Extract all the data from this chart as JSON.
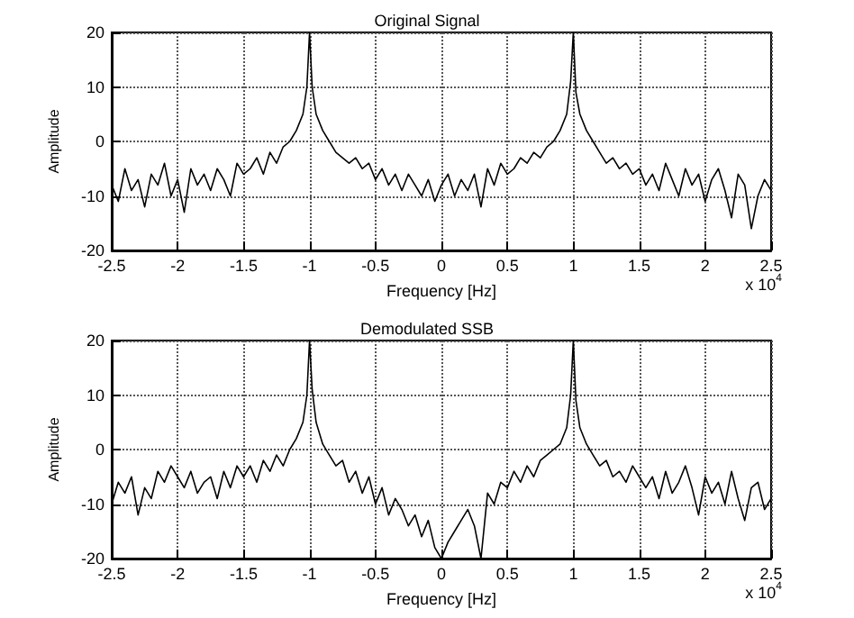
{
  "chart_data": [
    {
      "type": "line",
      "title": "Original Signal",
      "xlabel": "Frequency [Hz]",
      "ylabel": "Amplitude",
      "annotations": [
        "x 10$^{4}$"
      ],
      "xlim": [
        -2.5,
        2.5
      ],
      "xticks": [
        -2.5,
        -2,
        -1.5,
        -1,
        -0.5,
        0,
        0.5,
        1,
        1.5,
        2,
        2.5
      ],
      "ylim": [
        -20,
        20
      ],
      "yticks": [
        -20,
        -10,
        0,
        10,
        20
      ],
      "grid": true,
      "marker": "none",
      "line_style": "solid",
      "x": [
        -2.5,
        -2.45,
        -2.4,
        -2.35,
        -2.3,
        -2.25,
        -2.2,
        -2.15,
        -2.1,
        -2.05,
        -2,
        -1.95,
        -1.9,
        -1.85,
        -1.8,
        -1.75,
        -1.7,
        -1.65,
        -1.6,
        -1.55,
        -1.5,
        -1.45,
        -1.4,
        -1.35,
        -1.3,
        -1.25,
        -1.2,
        -1.15,
        -1.1,
        -1.05,
        -1.02,
        -1,
        -0.98,
        -0.95,
        -0.9,
        -0.85,
        -0.8,
        -0.75,
        -0.7,
        -0.65,
        -0.6,
        -0.55,
        -0.5,
        -0.45,
        -0.4,
        -0.35,
        -0.3,
        -0.25,
        -0.2,
        -0.15,
        -0.1,
        -0.05,
        0,
        0.05,
        0.1,
        0.15,
        0.2,
        0.25,
        0.3,
        0.35,
        0.4,
        0.45,
        0.5,
        0.55,
        0.6,
        0.65,
        0.7,
        0.75,
        0.8,
        0.85,
        0.9,
        0.95,
        0.98,
        1,
        1.02,
        1.05,
        1.1,
        1.15,
        1.2,
        1.25,
        1.3,
        1.35,
        1.4,
        1.45,
        1.5,
        1.55,
        1.6,
        1.65,
        1.7,
        1.75,
        1.8,
        1.85,
        1.9,
        1.95,
        2,
        2.05,
        2.1,
        2.15,
        2.2,
        2.25,
        2.3,
        2.35,
        2.4,
        2.45,
        2.5
      ],
      "series": [
        {
          "color": "#000000",
          "values": [
            -8,
            -11,
            -5,
            -9,
            -7,
            -12,
            -6,
            -8,
            -4,
            -10,
            -7,
            -13,
            -5,
            -8,
            -6,
            -9,
            -5,
            -7,
            -10,
            -4,
            -6,
            -5,
            -3,
            -6,
            -2,
            -4,
            -1,
            0,
            2,
            5,
            10,
            20,
            10,
            5,
            2,
            0,
            -2,
            -3,
            -4,
            -3,
            -5,
            -4,
            -7,
            -5,
            -8,
            -6,
            -9,
            -6,
            -8,
            -10,
            -7,
            -11,
            -8,
            -6,
            -10,
            -7,
            -9,
            -6,
            -12,
            -5,
            -8,
            -4,
            -6,
            -5,
            -3,
            -4,
            -2,
            -3,
            -1,
            0,
            2,
            5,
            11,
            20,
            9,
            5,
            2,
            0,
            -2,
            -4,
            -3,
            -5,
            -4,
            -6,
            -5,
            -8,
            -6,
            -9,
            -4,
            -7,
            -10,
            -5,
            -8,
            -6,
            -11,
            -7,
            -5,
            -9,
            -14,
            -6,
            -8,
            -16,
            -10,
            -7,
            -9
          ]
        }
      ]
    },
    {
      "type": "line",
      "title": "Demodulated SSB",
      "xlabel": "Frequency [Hz]",
      "ylabel": "Amplitude",
      "annotations": [
        "x 10$^{4}$"
      ],
      "xlim": [
        -2.5,
        2.5
      ],
      "xticks": [
        -2.5,
        -2,
        -1.5,
        -1,
        -0.5,
        0,
        0.5,
        1,
        1.5,
        2,
        2.5
      ],
      "ylim": [
        -20,
        20
      ],
      "yticks": [
        -20,
        -10,
        0,
        10,
        20
      ],
      "grid": true,
      "marker": "none",
      "line_style": "solid",
      "x": [
        -2.5,
        -2.45,
        -2.4,
        -2.35,
        -2.3,
        -2.25,
        -2.2,
        -2.15,
        -2.1,
        -2.05,
        -2,
        -1.95,
        -1.9,
        -1.85,
        -1.8,
        -1.75,
        -1.7,
        -1.65,
        -1.6,
        -1.55,
        -1.5,
        -1.45,
        -1.4,
        -1.35,
        -1.3,
        -1.25,
        -1.2,
        -1.15,
        -1.1,
        -1.05,
        -1.02,
        -1,
        -0.98,
        -0.95,
        -0.9,
        -0.85,
        -0.8,
        -0.75,
        -0.7,
        -0.65,
        -0.6,
        -0.55,
        -0.5,
        -0.45,
        -0.4,
        -0.35,
        -0.3,
        -0.25,
        -0.2,
        -0.15,
        -0.1,
        -0.05,
        0,
        0.05,
        0.1,
        0.15,
        0.2,
        0.25,
        0.3,
        0.35,
        0.4,
        0.45,
        0.5,
        0.55,
        0.6,
        0.65,
        0.7,
        0.75,
        0.8,
        0.85,
        0.9,
        0.95,
        0.98,
        1,
        1.02,
        1.05,
        1.1,
        1.15,
        1.2,
        1.25,
        1.3,
        1.35,
        1.4,
        1.45,
        1.5,
        1.55,
        1.6,
        1.65,
        1.7,
        1.75,
        1.8,
        1.85,
        1.9,
        1.95,
        2,
        2.05,
        2.1,
        2.15,
        2.2,
        2.25,
        2.3,
        2.35,
        2.4,
        2.45,
        2.5
      ],
      "series": [
        {
          "color": "#000000",
          "values": [
            -10,
            -6,
            -8,
            -5,
            -12,
            -7,
            -9,
            -4,
            -6,
            -3,
            -5,
            -7,
            -4,
            -8,
            -6,
            -5,
            -9,
            -4,
            -7,
            -3,
            -5,
            -3,
            -6,
            -2,
            -4,
            -1,
            -3,
            0,
            2,
            5,
            10,
            20,
            11,
            5,
            1,
            -1,
            -3,
            -2,
            -6,
            -4,
            -8,
            -5,
            -10,
            -7,
            -12,
            -9,
            -11,
            -14,
            -12,
            -16,
            -13,
            -18,
            -20,
            -17,
            -15,
            -13,
            -11,
            -14,
            -20,
            -8,
            -10,
            -6,
            -7,
            -4,
            -6,
            -3,
            -5,
            -2,
            -1,
            0,
            1,
            4,
            10,
            20,
            9,
            4,
            1,
            -1,
            -3,
            -2,
            -5,
            -4,
            -6,
            -3,
            -5,
            -7,
            -5,
            -9,
            -4,
            -8,
            -6,
            -3,
            -7,
            -12,
            -5,
            -8,
            -6,
            -10,
            -4,
            -9,
            -13,
            -7,
            -6,
            -11,
            -9
          ]
        }
      ]
    }
  ]
}
